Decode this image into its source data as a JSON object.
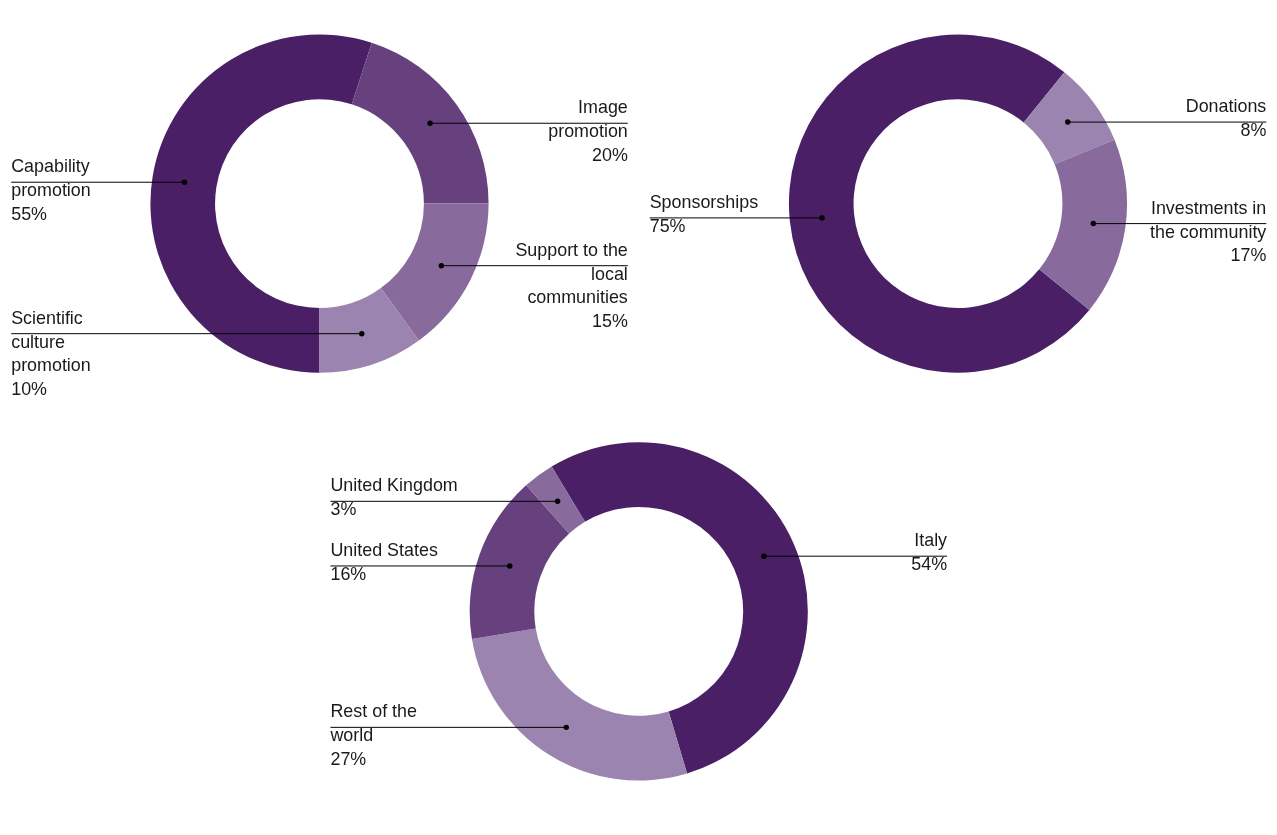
{
  "chart_data": [
    {
      "type": "donut",
      "categories": [
        "Capability promotion",
        "Image promotion",
        "Support to the local communities",
        "Scientific culture promotion"
      ],
      "values": [
        55,
        20,
        15,
        10
      ],
      "value_labels": [
        "55%",
        "20%",
        "15%",
        "10%"
      ],
      "colors": [
        "#4a1f66",
        "#66417e",
        "#886a9c",
        "#9b84b0"
      ]
    },
    {
      "type": "donut",
      "categories": [
        "Sponsorships",
        "Donations",
        "Investments in the community"
      ],
      "values": [
        75,
        8,
        17
      ],
      "value_labels": [
        "75%",
        "8%",
        "17%"
      ],
      "colors": [
        "#4a1f66",
        "#9b84b0",
        "#886a9c"
      ]
    },
    {
      "type": "donut",
      "categories": [
        "Italy",
        "Rest of the world",
        "United States",
        "United Kingdom"
      ],
      "values": [
        54,
        27,
        16,
        3
      ],
      "value_labels": [
        "54%",
        "27%",
        "16%",
        "3%"
      ],
      "colors": [
        "#4a1f66",
        "#9b84b0",
        "#66417e",
        "#886a9c"
      ]
    }
  ]
}
